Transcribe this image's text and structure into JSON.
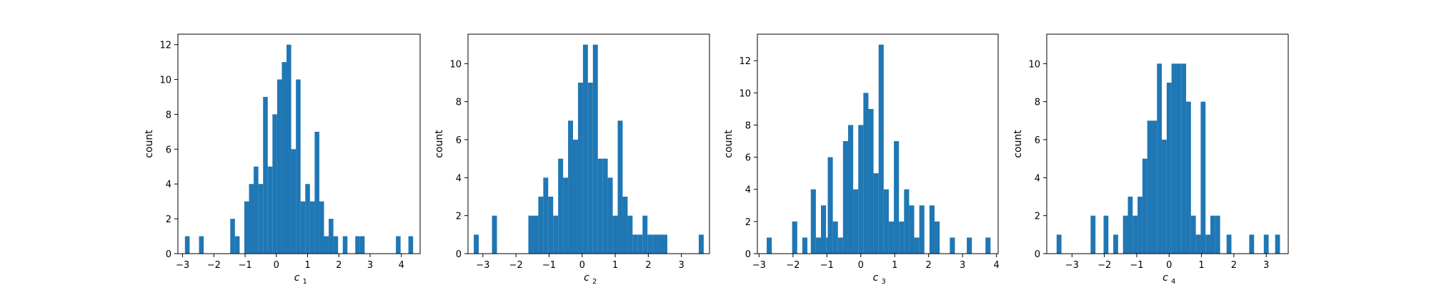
{
  "chart_data": [
    {
      "type": "bar",
      "xlabel": "c",
      "xlabel_sub": "1",
      "ylabel": "count",
      "xlim": [
        -3.15,
        4.6
      ],
      "ylim": [
        0,
        12.6
      ],
      "bin_width": 0.15,
      "xticks": [
        -3,
        -2,
        -1,
        0,
        1,
        2,
        3,
        4
      ],
      "xtick_labels": [
        "−3",
        "−2",
        "−1",
        "0",
        "1",
        "2",
        "3",
        "4"
      ],
      "yticks": [
        0,
        2,
        4,
        6,
        8,
        10,
        12
      ],
      "ytick_labels": [
        "0",
        "2",
        "4",
        "6",
        "8",
        "10",
        "12"
      ],
      "bars": [
        {
          "x": -2.85,
          "value": 1
        },
        {
          "x": -2.4,
          "value": 1
        },
        {
          "x": -1.4,
          "value": 2
        },
        {
          "x": -1.25,
          "value": 1
        },
        {
          "x": -0.95,
          "value": 3
        },
        {
          "x": -0.8,
          "value": 4
        },
        {
          "x": -0.65,
          "value": 5
        },
        {
          "x": -0.5,
          "value": 4
        },
        {
          "x": -0.35,
          "value": 9
        },
        {
          "x": -0.2,
          "value": 5
        },
        {
          "x": -0.05,
          "value": 8
        },
        {
          "x": 0.1,
          "value": 10
        },
        {
          "x": 0.25,
          "value": 11
        },
        {
          "x": 0.4,
          "value": 12
        },
        {
          "x": 0.55,
          "value": 6
        },
        {
          "x": 0.7,
          "value": 10
        },
        {
          "x": 0.85,
          "value": 3
        },
        {
          "x": 1.0,
          "value": 4
        },
        {
          "x": 1.15,
          "value": 3
        },
        {
          "x": 1.3,
          "value": 7
        },
        {
          "x": 1.45,
          "value": 3
        },
        {
          "x": 1.6,
          "value": 1
        },
        {
          "x": 1.75,
          "value": 2
        },
        {
          "x": 1.9,
          "value": 1
        },
        {
          "x": 2.2,
          "value": 1
        },
        {
          "x": 2.6,
          "value": 1
        },
        {
          "x": 2.75,
          "value": 1
        },
        {
          "x": 3.9,
          "value": 1
        },
        {
          "x": 4.3,
          "value": 1
        }
      ]
    },
    {
      "type": "bar",
      "xlabel": "c",
      "xlabel_sub": "2",
      "ylabel": "count",
      "xlim": [
        -3.45,
        3.85
      ],
      "ylim": [
        0,
        11.55
      ],
      "bin_width": 0.15,
      "xticks": [
        -3,
        -2,
        -1,
        0,
        1,
        2,
        3
      ],
      "xtick_labels": [
        "−3",
        "−2",
        "−1",
        "0",
        "1",
        "2",
        "3"
      ],
      "yticks": [
        0,
        2,
        4,
        6,
        8,
        10
      ],
      "ytick_labels": [
        "0",
        "2",
        "4",
        "6",
        "8",
        "10"
      ],
      "bars": [
        {
          "x": -3.2,
          "value": 1
        },
        {
          "x": -2.65,
          "value": 2
        },
        {
          "x": -1.55,
          "value": 2
        },
        {
          "x": -1.4,
          "value": 2
        },
        {
          "x": -1.25,
          "value": 3
        },
        {
          "x": -1.1,
          "value": 4
        },
        {
          "x": -0.95,
          "value": 3
        },
        {
          "x": -0.8,
          "value": 2
        },
        {
          "x": -0.65,
          "value": 5
        },
        {
          "x": -0.5,
          "value": 4
        },
        {
          "x": -0.35,
          "value": 7
        },
        {
          "x": -0.2,
          "value": 6
        },
        {
          "x": -0.05,
          "value": 9
        },
        {
          "x": 0.1,
          "value": 11
        },
        {
          "x": 0.25,
          "value": 9
        },
        {
          "x": 0.4,
          "value": 11
        },
        {
          "x": 0.55,
          "value": 5
        },
        {
          "x": 0.7,
          "value": 5
        },
        {
          "x": 0.85,
          "value": 4
        },
        {
          "x": 1.0,
          "value": 2
        },
        {
          "x": 1.15,
          "value": 7
        },
        {
          "x": 1.3,
          "value": 3
        },
        {
          "x": 1.45,
          "value": 2
        },
        {
          "x": 1.6,
          "value": 1
        },
        {
          "x": 1.75,
          "value": 1
        },
        {
          "x": 1.9,
          "value": 2
        },
        {
          "x": 2.05,
          "value": 1
        },
        {
          "x": 2.2,
          "value": 1
        },
        {
          "x": 2.35,
          "value": 1
        },
        {
          "x": 2.5,
          "value": 1
        },
        {
          "x": 3.6,
          "value": 1
        }
      ]
    },
    {
      "type": "bar",
      "xlabel": "c",
      "xlabel_sub": "3",
      "ylabel": "count",
      "xlim": [
        -3.05,
        4.05
      ],
      "ylim": [
        0,
        13.65
      ],
      "bin_width": 0.15,
      "xticks": [
        -3,
        -2,
        -1,
        0,
        1,
        2,
        3,
        4
      ],
      "xtick_labels": [
        "−3",
        "−2",
        "−1",
        "0",
        "1",
        "2",
        "3",
        "4"
      ],
      "yticks": [
        0,
        2,
        4,
        6,
        8,
        10,
        12
      ],
      "ytick_labels": [
        "0",
        "2",
        "4",
        "6",
        "8",
        "10",
        "12"
      ],
      "bars": [
        {
          "x": -2.7,
          "value": 1
        },
        {
          "x": -1.95,
          "value": 2
        },
        {
          "x": -1.8,
          "value": 0
        },
        {
          "x": -1.65,
          "value": 1
        },
        {
          "x": -1.4,
          "value": 4
        },
        {
          "x": -1.25,
          "value": 1
        },
        {
          "x": -1.1,
          "value": 3
        },
        {
          "x": -0.95,
          "value": 1
        },
        {
          "x": -0.9,
          "value": 6
        },
        {
          "x": -0.75,
          "value": 2
        },
        {
          "x": -0.6,
          "value": 1
        },
        {
          "x": -0.45,
          "value": 7
        },
        {
          "x": -0.3,
          "value": 8
        },
        {
          "x": -0.15,
          "value": 4
        },
        {
          "x": 0.0,
          "value": 8
        },
        {
          "x": 0.15,
          "value": 10
        },
        {
          "x": 0.3,
          "value": 9
        },
        {
          "x": 0.45,
          "value": 5
        },
        {
          "x": 0.6,
          "value": 13
        },
        {
          "x": 0.75,
          "value": 4
        },
        {
          "x": 0.9,
          "value": 2
        },
        {
          "x": 1.05,
          "value": 7
        },
        {
          "x": 1.2,
          "value": 2
        },
        {
          "x": 1.35,
          "value": 4
        },
        {
          "x": 1.5,
          "value": 3
        },
        {
          "x": 1.65,
          "value": 1
        },
        {
          "x": 1.8,
          "value": 3
        },
        {
          "x": 2.1,
          "value": 3
        },
        {
          "x": 2.25,
          "value": 2
        },
        {
          "x": 2.7,
          "value": 1
        },
        {
          "x": 3.2,
          "value": 1
        },
        {
          "x": 3.75,
          "value": 1
        }
      ]
    },
    {
      "type": "bar",
      "xlabel": "c",
      "xlabel_sub": "4",
      "ylabel": "count",
      "xlim": [
        -3.78,
        3.68
      ],
      "ylim": [
        0,
        11.55
      ],
      "bin_width": 0.15,
      "xticks": [
        -3,
        -2,
        -1,
        0,
        1,
        2,
        3
      ],
      "xtick_labels": [
        "−3",
        "−2",
        "−1",
        "0",
        "1",
        "2",
        "3"
      ],
      "yticks": [
        0,
        2,
        4,
        6,
        8,
        10
      ],
      "ytick_labels": [
        "0",
        "2",
        "4",
        "6",
        "8",
        "10"
      ],
      "bars": [
        {
          "x": -3.4,
          "value": 1
        },
        {
          "x": -2.35,
          "value": 2
        },
        {
          "x": -1.95,
          "value": 2
        },
        {
          "x": -1.65,
          "value": 1
        },
        {
          "x": -1.35,
          "value": 2
        },
        {
          "x": -1.2,
          "value": 3
        },
        {
          "x": -1.05,
          "value": 2
        },
        {
          "x": -0.9,
          "value": 3
        },
        {
          "x": -0.75,
          "value": 5
        },
        {
          "x": -0.6,
          "value": 7
        },
        {
          "x": -0.45,
          "value": 7
        },
        {
          "x": -0.3,
          "value": 10
        },
        {
          "x": -0.15,
          "value": 6
        },
        {
          "x": 0.0,
          "value": 9
        },
        {
          "x": 0.15,
          "value": 10
        },
        {
          "x": 0.3,
          "value": 10
        },
        {
          "x": 0.45,
          "value": 10
        },
        {
          "x": 0.6,
          "value": 8
        },
        {
          "x": 0.75,
          "value": 2
        },
        {
          "x": 0.9,
          "value": 1
        },
        {
          "x": 1.05,
          "value": 8
        },
        {
          "x": 1.2,
          "value": 1
        },
        {
          "x": 1.35,
          "value": 2
        },
        {
          "x": 1.5,
          "value": 2
        },
        {
          "x": 1.85,
          "value": 1
        },
        {
          "x": 2.55,
          "value": 1
        },
        {
          "x": 3.0,
          "value": 1
        },
        {
          "x": 3.35,
          "value": 1
        }
      ]
    }
  ]
}
